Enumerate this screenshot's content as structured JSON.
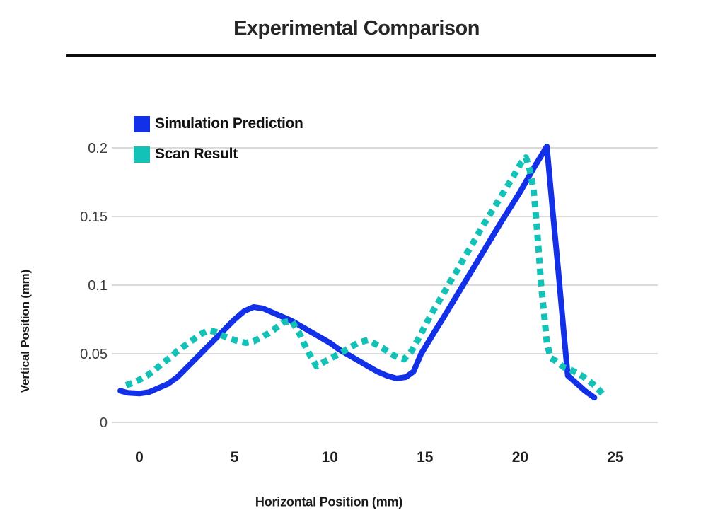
{
  "title": "Experimental Comparison",
  "chart_data": {
    "type": "line",
    "title": "Experimental Comparison",
    "xlabel": "Horizontal Position (mm)",
    "ylabel": "Vertical Position (mm)",
    "xlim": [
      -1.5,
      26.5
    ],
    "ylim": [
      0,
      0.21
    ],
    "x_ticks": [
      0,
      5,
      10,
      15,
      20,
      25
    ],
    "y_ticks": [
      0,
      0.05,
      0.1,
      0.15,
      0.2
    ],
    "y_tick_labels": [
      "0",
      "0.05",
      "0.1",
      "0.15",
      "0.2"
    ],
    "grid": "horizontal-only",
    "gridline_color": "#c4c4c4",
    "legend_position": "top-left-inside",
    "series": [
      {
        "name": "Simulation Prediction",
        "color": "#1130e8",
        "style": "solid",
        "points": [
          [
            -1.0,
            0.023
          ],
          [
            -0.6,
            0.0215
          ],
          [
            0,
            0.021
          ],
          [
            0.5,
            0.022
          ],
          [
            1,
            0.025
          ],
          [
            1.5,
            0.028
          ],
          [
            2,
            0.033
          ],
          [
            2.5,
            0.04
          ],
          [
            3,
            0.047
          ],
          [
            3.5,
            0.054
          ],
          [
            4,
            0.061
          ],
          [
            4.5,
            0.068
          ],
          [
            5,
            0.075
          ],
          [
            5.5,
            0.081
          ],
          [
            6,
            0.084
          ],
          [
            6.5,
            0.083
          ],
          [
            7,
            0.08
          ],
          [
            7.5,
            0.077
          ],
          [
            8,
            0.074
          ],
          [
            8.5,
            0.07
          ],
          [
            9,
            0.066
          ],
          [
            9.5,
            0.062
          ],
          [
            10,
            0.058
          ],
          [
            10.5,
            0.053
          ],
          [
            11,
            0.049
          ],
          [
            11.5,
            0.045
          ],
          [
            12,
            0.041
          ],
          [
            12.5,
            0.037
          ],
          [
            13,
            0.034
          ],
          [
            13.5,
            0.032
          ],
          [
            14,
            0.033
          ],
          [
            14.4,
            0.037
          ],
          [
            14.8,
            0.05
          ],
          [
            15.5,
            0.066
          ],
          [
            16,
            0.077
          ],
          [
            17,
            0.1
          ],
          [
            18,
            0.123
          ],
          [
            19,
            0.146
          ],
          [
            20,
            0.168
          ],
          [
            20.7,
            0.185
          ],
          [
            21.4,
            0.201
          ],
          [
            21.7,
            0.155
          ],
          [
            22,
            0.111
          ],
          [
            22.3,
            0.064
          ],
          [
            22.5,
            0.034
          ],
          [
            23,
            0.028
          ],
          [
            23.4,
            0.023
          ],
          [
            23.9,
            0.018
          ]
        ]
      },
      {
        "name": "Scan Result",
        "color": "#12c2b6",
        "style": "dotted",
        "points": [
          [
            -0.7,
            0.027
          ],
          [
            -0.3,
            0.029
          ],
          [
            0,
            0.031
          ],
          [
            0.4,
            0.034
          ],
          [
            0.8,
            0.038
          ],
          [
            1.2,
            0.043
          ],
          [
            1.6,
            0.047
          ],
          [
            2,
            0.052
          ],
          [
            2.4,
            0.056
          ],
          [
            2.8,
            0.06
          ],
          [
            3.2,
            0.064
          ],
          [
            3.6,
            0.067
          ],
          [
            4,
            0.066
          ],
          [
            4.4,
            0.063
          ],
          [
            4.8,
            0.061
          ],
          [
            5.2,
            0.059
          ],
          [
            5.6,
            0.058
          ],
          [
            6,
            0.059
          ],
          [
            6.4,
            0.062
          ],
          [
            6.8,
            0.065
          ],
          [
            7.2,
            0.069
          ],
          [
            7.6,
            0.073
          ],
          [
            8,
            0.074
          ],
          [
            8.4,
            0.065
          ],
          [
            8.7,
            0.056
          ],
          [
            9,
            0.048
          ],
          [
            9.3,
            0.041
          ],
          [
            9.7,
            0.044
          ],
          [
            10.1,
            0.047
          ],
          [
            10.5,
            0.05
          ],
          [
            11,
            0.054
          ],
          [
            11.5,
            0.058
          ],
          [
            12,
            0.06
          ],
          [
            12.4,
            0.057
          ],
          [
            12.8,
            0.054
          ],
          [
            13.2,
            0.05
          ],
          [
            13.6,
            0.047
          ],
          [
            13.9,
            0.046
          ],
          [
            14.3,
            0.052
          ],
          [
            14.7,
            0.062
          ],
          [
            15.1,
            0.073
          ],
          [
            15.5,
            0.083
          ],
          [
            15.9,
            0.092
          ],
          [
            16.3,
            0.102
          ],
          [
            16.7,
            0.111
          ],
          [
            17.1,
            0.121
          ],
          [
            17.5,
            0.13
          ],
          [
            17.9,
            0.14
          ],
          [
            18.3,
            0.149
          ],
          [
            18.7,
            0.158
          ],
          [
            19.1,
            0.167
          ],
          [
            19.5,
            0.176
          ],
          [
            19.8,
            0.183
          ],
          [
            20.05,
            0.189
          ],
          [
            20.3,
            0.193
          ],
          [
            20.5,
            0.184
          ],
          [
            20.7,
            0.17
          ],
          [
            20.8,
            0.155
          ],
          [
            20.9,
            0.138
          ],
          [
            21.0,
            0.12
          ],
          [
            21.1,
            0.1
          ],
          [
            21.25,
            0.08
          ],
          [
            21.4,
            0.058
          ],
          [
            21.6,
            0.047
          ],
          [
            21.9,
            0.0445
          ],
          [
            22.3,
            0.04
          ],
          [
            22.7,
            0.038
          ],
          [
            23.3,
            0.0335
          ],
          [
            23.9,
            0.027
          ],
          [
            24.35,
            0.0205
          ]
        ]
      }
    ]
  }
}
